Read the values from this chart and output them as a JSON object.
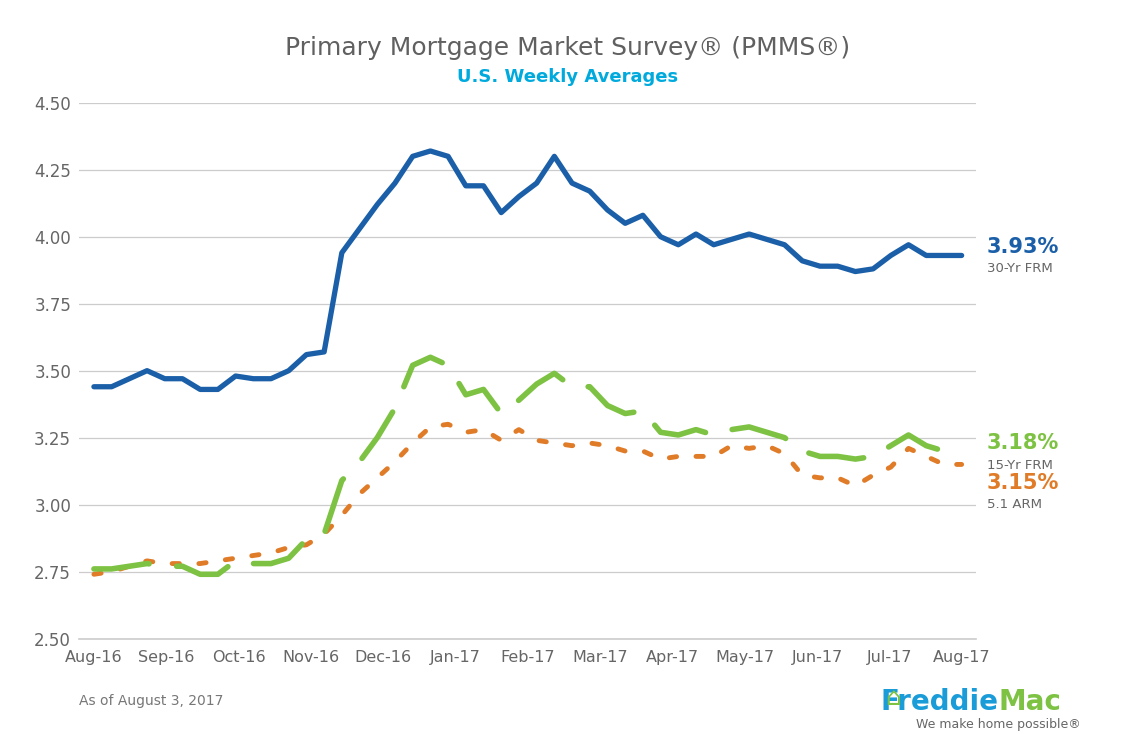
{
  "title": "Primary Mortgage Market Survey® (PMMS®)",
  "subtitle": "U.S. Weekly Averages",
  "footnote": "As of August 3, 2017",
  "bg_color": "#ffffff",
  "title_color": "#606060",
  "subtitle_color": "#00aadd",
  "x_labels": [
    "Aug-16",
    "Sep-16",
    "Oct-16",
    "Nov-16",
    "Dec-16",
    "Jan-17",
    "Feb-17",
    "Mar-17",
    "Apr-17",
    "May-17",
    "Jun-17",
    "Jul-17",
    "Aug-17"
  ],
  "ylim": [
    2.5,
    4.5
  ],
  "yticks": [
    2.5,
    2.75,
    3.0,
    3.25,
    3.5,
    3.75,
    4.0,
    4.25,
    4.5
  ],
  "series_30yr": [
    3.44,
    3.44,
    3.47,
    3.5,
    3.47,
    3.47,
    3.43,
    3.43,
    3.48,
    3.47,
    3.47,
    3.5,
    3.56,
    3.57,
    3.94,
    4.03,
    4.12,
    4.2,
    4.3,
    4.32,
    4.3,
    4.19,
    4.19,
    4.09,
    4.15,
    4.2,
    4.3,
    4.2,
    4.17,
    4.1,
    4.05,
    4.08,
    4.0,
    3.97,
    4.01,
    3.97,
    3.99,
    4.01,
    3.99,
    3.97,
    3.91,
    3.89,
    3.89,
    3.87,
    3.88,
    3.93,
    3.97,
    3.93,
    3.93,
    3.93
  ],
  "series_15yr": [
    2.76,
    2.76,
    2.77,
    2.78,
    2.77,
    2.77,
    2.74,
    2.74,
    2.79,
    2.78,
    2.78,
    2.8,
    2.87,
    2.89,
    3.09,
    3.16,
    3.25,
    3.36,
    3.52,
    3.55,
    3.52,
    3.41,
    3.43,
    3.34,
    3.39,
    3.45,
    3.49,
    3.44,
    3.44,
    3.37,
    3.34,
    3.35,
    3.27,
    3.26,
    3.28,
    3.26,
    3.28,
    3.29,
    3.27,
    3.25,
    3.2,
    3.18,
    3.18,
    3.17,
    3.18,
    3.22,
    3.26,
    3.22,
    3.2,
    3.18
  ],
  "series_arm": [
    2.74,
    2.75,
    2.77,
    2.79,
    2.78,
    2.78,
    2.78,
    2.79,
    2.8,
    2.81,
    2.82,
    2.84,
    2.85,
    2.89,
    2.96,
    3.04,
    3.1,
    3.16,
    3.23,
    3.29,
    3.3,
    3.27,
    3.28,
    3.24,
    3.28,
    3.24,
    3.23,
    3.22,
    3.23,
    3.22,
    3.2,
    3.2,
    3.17,
    3.18,
    3.18,
    3.18,
    3.22,
    3.21,
    3.22,
    3.19,
    3.11,
    3.1,
    3.1,
    3.07,
    3.11,
    3.14,
    3.21,
    3.18,
    3.15,
    3.15
  ],
  "color_30yr": "#1a5fa8",
  "color_15yr": "#7dc242",
  "color_arm": "#e07b28",
  "label_30yr": "3.93%",
  "label_15yr": "3.18%",
  "label_arm": "3.15%",
  "sublabel_30yr": "30-Yr FRM",
  "sublabel_15yr": "15-Yr FRM",
  "sublabel_arm": "5.1 ARM",
  "freddie_blue": "#1a9cd8",
  "freddie_green": "#7dc242",
  "freddie_gray": "#666666"
}
